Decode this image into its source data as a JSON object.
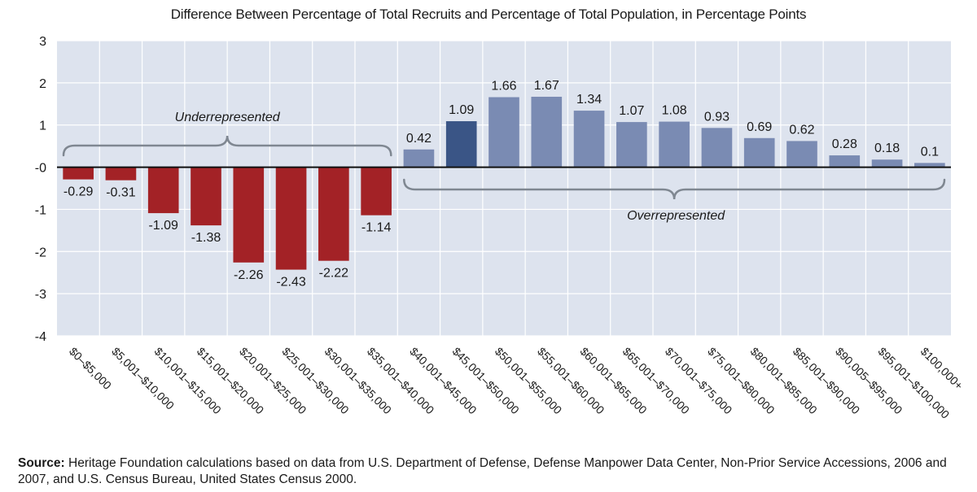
{
  "chart_data": {
    "type": "bar",
    "title": "Difference Between Percentage of Total Recruits and Percentage of Total Population, in Percentage Points",
    "categories": [
      "$0–$5,000",
      "$5,001–$10,000",
      "$10,001–$15,000",
      "$15,001–$20,000",
      "$20,001–$25,000",
      "$25,001–$30,000",
      "$30,001–$35,000",
      "$35,001–$40,000",
      "$40,001–$45,000",
      "$45,001–$50,000",
      "$50,001–$55,000",
      "$55,001–$60,000",
      "$60,001–$65,000",
      "$65,001–$70,000",
      "$70,001–$75,000",
      "$75,001–$80,000",
      "$80,001–$85,000",
      "$85,001–$90,000",
      "$90,005–$95,000",
      "$95,001–$100,000",
      "$100,000+"
    ],
    "values": [
      -0.29,
      -0.31,
      -1.09,
      -1.38,
      -2.26,
      -2.43,
      -2.22,
      -1.14,
      0.42,
      1.09,
      1.66,
      1.67,
      1.34,
      1.07,
      1.08,
      0.93,
      0.69,
      0.62,
      0.28,
      0.18,
      0.1
    ],
    "value_labels": [
      "-0.29",
      "-0.31",
      "-1.09",
      "-1.38",
      "-2.26",
      "-2.43",
      "-2.22",
      "-1.14",
      "0.42",
      "1.09",
      "1.66",
      "1.67",
      "1.34",
      "1.07",
      "1.08",
      "0.93",
      "0.69",
      "0.62",
      "0.28",
      "0.18",
      "0.1"
    ],
    "ylim": [
      -4,
      3
    ],
    "yticks": [
      3,
      2,
      1,
      0,
      -1,
      -2,
      -3,
      -4
    ],
    "ytick_labels": [
      "3",
      "2",
      "1",
      "-0",
      "-1",
      "-2",
      "-3",
      "-4"
    ],
    "grid": true,
    "xlabel": "",
    "ylabel": "",
    "annotations": {
      "underrepresented": "Underrepresented",
      "overrepresented": "Overrepresented"
    },
    "colors": {
      "negative": "#a32226",
      "positive": "#7a8bb3",
      "highlight": "#3a5586",
      "plot_background": "#dde3ee",
      "gridline": "#ffffff",
      "brace": "#7f8791"
    },
    "highlight_index": 9
  },
  "source": {
    "label": "Source:",
    "text": " Heritage Foundation calculations based on data from U.S. Department of Defense, Defense Manpower Data Center, Non-Prior Service Accessions, 2006 and 2007, and U.S. Census Bureau, United States Census 2000."
  }
}
